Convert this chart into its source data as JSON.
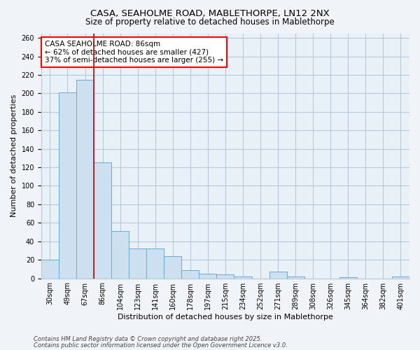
{
  "title1": "CASA, SEAHOLME ROAD, MABLETHORPE, LN12 2NX",
  "title2": "Size of property relative to detached houses in Mablethorpe",
  "xlabel": "Distribution of detached houses by size in Mablethorpe",
  "ylabel": "Number of detached properties",
  "categories": [
    "30sqm",
    "49sqm",
    "67sqm",
    "86sqm",
    "104sqm",
    "123sqm",
    "141sqm",
    "160sqm",
    "178sqm",
    "197sqm",
    "215sqm",
    "234sqm",
    "252sqm",
    "271sqm",
    "289sqm",
    "308sqm",
    "326sqm",
    "345sqm",
    "364sqm",
    "382sqm",
    "401sqm"
  ],
  "values": [
    20,
    201,
    215,
    125,
    51,
    32,
    32,
    24,
    9,
    5,
    4,
    2,
    0,
    7,
    2,
    0,
    0,
    1,
    0,
    0,
    2
  ],
  "bar_color": "#cce0f0",
  "bar_edge_color": "#6aaad4",
  "vline_color": "#cc0000",
  "vline_x": 2.5,
  "annotation_text": "CASA SEAHOLME ROAD: 86sqm\n← 62% of detached houses are smaller (427)\n37% of semi-detached houses are larger (255) →",
  "ylim": [
    0,
    265
  ],
  "yticks": [
    0,
    20,
    40,
    60,
    80,
    100,
    120,
    140,
    160,
    180,
    200,
    220,
    240,
    260
  ],
  "footnote1": "Contains HM Land Registry data © Crown copyright and database right 2025.",
  "footnote2": "Contains public sector information licensed under the Open Government Licence v3.0.",
  "background_color": "#f0f4f8",
  "plot_bg_color": "#e8f0f8",
  "grid_color": "#b8c8d8",
  "title_fontsize": 9.5,
  "subtitle_fontsize": 8.5,
  "axis_label_fontsize": 8,
  "tick_fontsize": 7,
  "annotation_fontsize": 7.5,
  "footnote_fontsize": 6
}
